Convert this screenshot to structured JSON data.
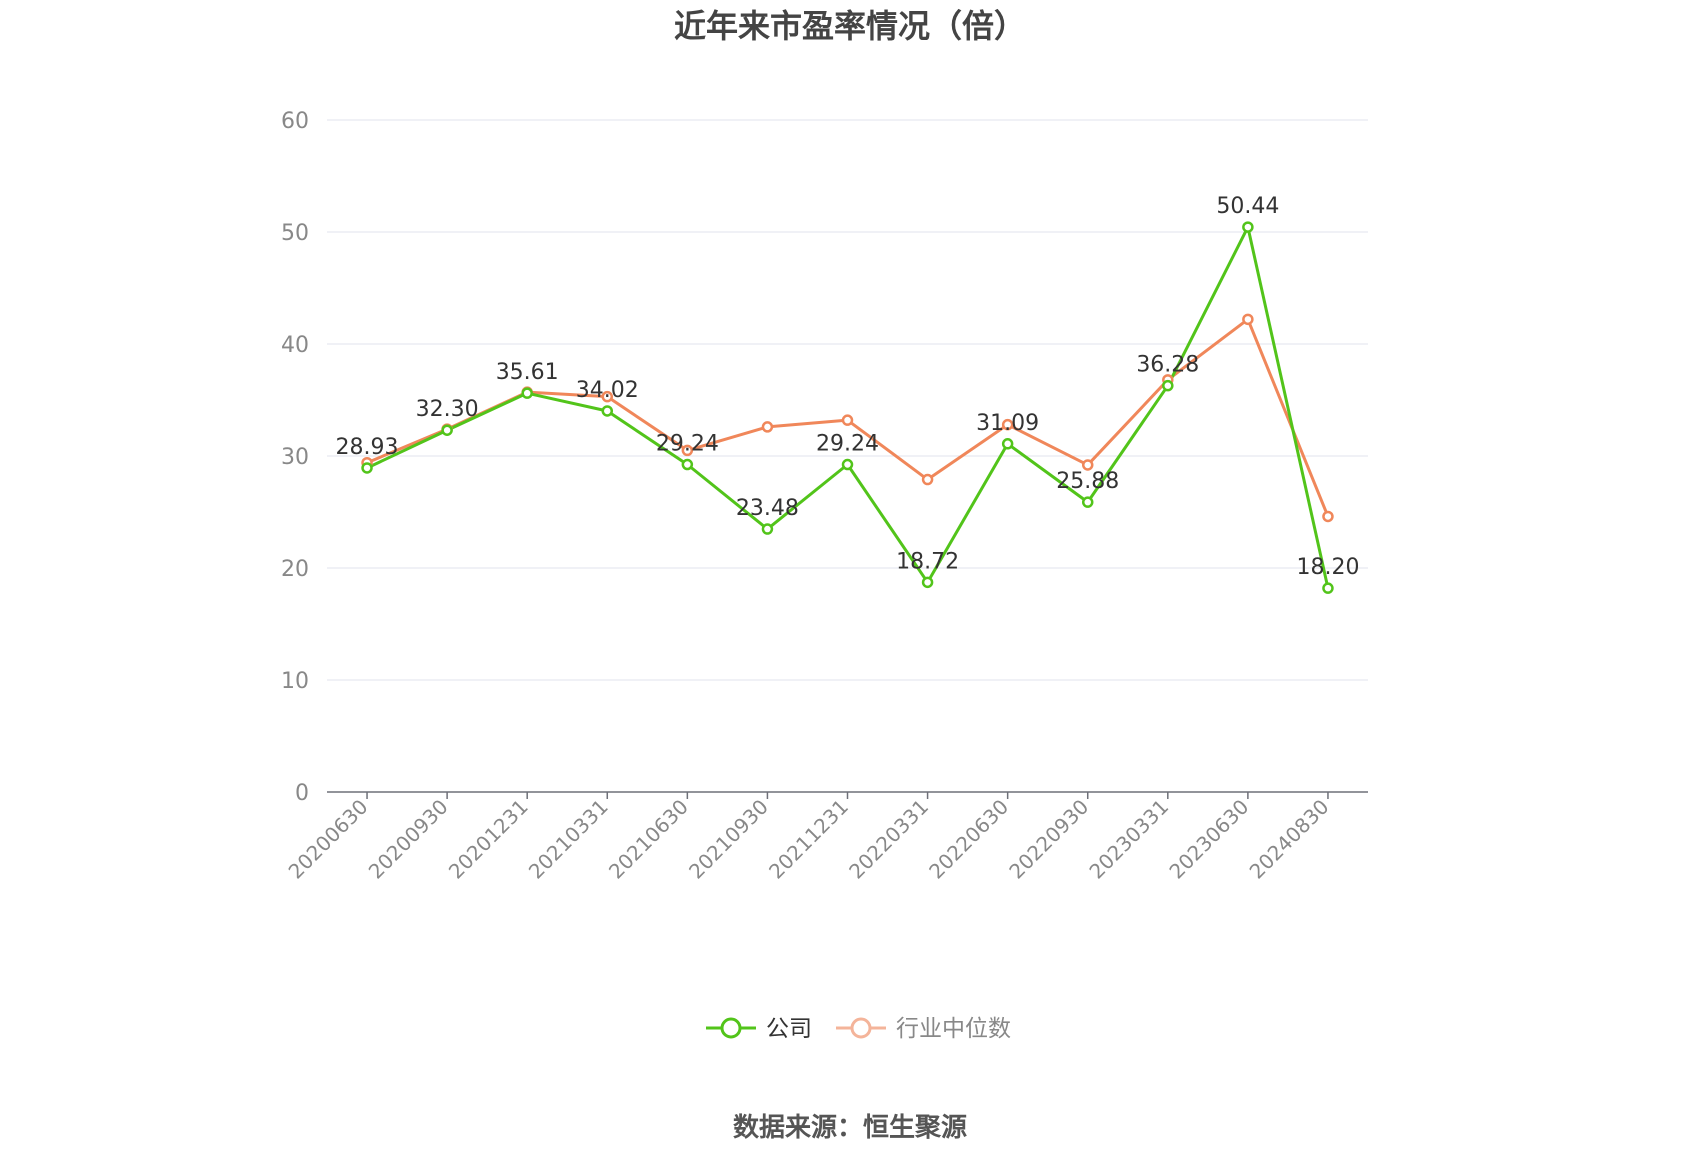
{
  "chart_data": {
    "type": "line",
    "title": "近年来市盈率情况（倍）",
    "categories": [
      "20200630",
      "20200930",
      "20201231",
      "20210331",
      "20210630",
      "20210930",
      "20211231",
      "20220331",
      "20220630",
      "20220930",
      "20230331",
      "20230630",
      "20240830"
    ],
    "series": [
      {
        "name": "公司",
        "color": "#52c41a",
        "values": [
          28.93,
          32.3,
          35.61,
          34.02,
          29.24,
          23.48,
          29.24,
          18.72,
          31.09,
          25.88,
          36.28,
          50.44,
          18.2
        ],
        "labels": [
          "28.93",
          "32.30",
          "35.61",
          "34.02",
          "29.24",
          "23.48",
          "29.24",
          "18.72",
          "31.09",
          "25.88",
          "36.28",
          "50.44",
          "18.20"
        ]
      },
      {
        "name": "行业中位数",
        "color": "#f0875a",
        "values": [
          29.4,
          32.4,
          35.7,
          35.3,
          30.5,
          32.6,
          33.2,
          27.9,
          32.8,
          29.2,
          36.8,
          42.2,
          24.6
        ]
      }
    ],
    "ylim": [
      0,
      60
    ],
    "yticks": [
      0,
      10,
      20,
      30,
      40,
      50,
      60
    ],
    "grid": true,
    "legend_position": "bottom"
  },
  "source_text": "数据来源：恒生聚源"
}
